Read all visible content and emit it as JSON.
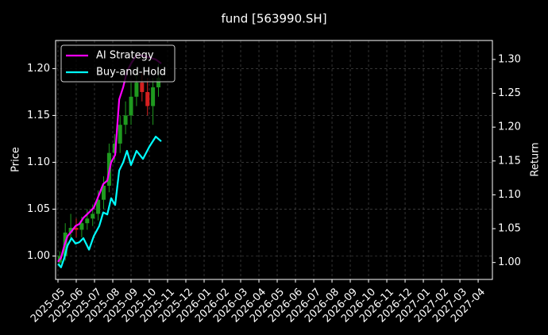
{
  "chart_data": {
    "type": "candlestick",
    "title": "fund [563990.SH]",
    "ylabel": "Price",
    "y2label": "Return",
    "legend": "upper left",
    "grid": true,
    "xlim": [
      -0.13,
      23.78
    ],
    "xticks": [
      {
        "value": 0,
        "label": "2025-05"
      },
      {
        "value": 1,
        "label": "2025-06"
      },
      {
        "value": 2,
        "label": "2025-07"
      },
      {
        "value": 3,
        "label": "2025-08"
      },
      {
        "value": 4,
        "label": "2025-09"
      },
      {
        "value": 5,
        "label": "2025-10"
      },
      {
        "value": 6,
        "label": "2025-11"
      },
      {
        "value": 7,
        "label": "2025-12"
      },
      {
        "value": 8,
        "label": "2026-01"
      },
      {
        "value": 9,
        "label": "2026-02"
      },
      {
        "value": 10,
        "label": "2026-03"
      },
      {
        "value": 11,
        "label": "2026-04"
      },
      {
        "value": 12,
        "label": "2026-05"
      },
      {
        "value": 13,
        "label": "2026-06"
      },
      {
        "value": 14,
        "label": "2026-07"
      },
      {
        "value": 15,
        "label": "2026-08"
      },
      {
        "value": 16,
        "label": "2026-09"
      },
      {
        "value": 17,
        "label": "2026-10"
      },
      {
        "value": 18,
        "label": "2026-11"
      },
      {
        "value": 19,
        "label": "2026-12"
      },
      {
        "value": 20,
        "label": "2027-01"
      },
      {
        "value": 21,
        "label": "2027-02"
      },
      {
        "value": 22,
        "label": "2027-03"
      },
      {
        "value": 23,
        "label": "2027-04"
      }
    ],
    "ylim": [
      0.975,
      1.23
    ],
    "yticks": [
      {
        "value": 1.0,
        "label": "1.00"
      },
      {
        "value": 1.05,
        "label": "1.05"
      },
      {
        "value": 1.1,
        "label": "1.10"
      },
      {
        "value": 1.15,
        "label": "1.15"
      },
      {
        "value": 1.2,
        "label": "1.20"
      }
    ],
    "y2lim": [
      0.975,
      1.328
    ],
    "y2ticks": [
      {
        "value": 1.0,
        "label": "1.00"
      },
      {
        "value": 1.05,
        "label": "1.05"
      },
      {
        "value": 1.1,
        "label": "1.10"
      },
      {
        "value": 1.15,
        "label": "1.15"
      },
      {
        "value": 1.2,
        "label": "1.20"
      },
      {
        "value": 1.25,
        "label": "1.25"
      },
      {
        "value": 1.3,
        "label": "1.30"
      }
    ],
    "up_color": "#1f9a1f",
    "down_color": "#d42020",
    "candles": {
      "x": [
        0.1,
        0.4,
        0.7,
        1.0,
        1.3,
        1.6,
        1.9,
        2.2,
        2.5,
        2.8,
        3.1,
        3.4,
        3.7,
        4.0,
        4.3,
        4.6,
        4.9,
        5.2,
        5.5
      ],
      "open": [
        0.993,
        1.0,
        1.025,
        1.03,
        1.028,
        1.035,
        1.04,
        1.045,
        1.06,
        1.075,
        1.11,
        1.12,
        1.14,
        1.15,
        1.17,
        1.185,
        1.175,
        1.16,
        1.18
      ],
      "close": [
        1.0,
        1.025,
        1.03,
        1.028,
        1.035,
        1.04,
        1.045,
        1.06,
        1.075,
        1.11,
        1.12,
        1.14,
        1.15,
        1.17,
        1.185,
        1.175,
        1.16,
        1.18,
        1.19
      ],
      "high": [
        1.005,
        1.035,
        1.045,
        1.04,
        1.042,
        1.05,
        1.055,
        1.07,
        1.085,
        1.12,
        1.13,
        1.15,
        1.165,
        1.185,
        1.2,
        1.195,
        1.19,
        1.19,
        1.205
      ],
      "low": [
        0.988,
        0.995,
        1.015,
        1.02,
        1.02,
        1.028,
        1.032,
        1.038,
        1.05,
        1.068,
        1.1,
        1.11,
        1.13,
        1.14,
        1.16,
        1.165,
        1.15,
        1.14,
        1.17
      ]
    },
    "x": [
      0,
      0.17,
      0.35,
      0.52,
      0.74,
      0.96,
      1.17,
      1.39,
      1.7,
      1.96,
      2.26,
      2.48,
      2.7,
      2.91,
      3.13,
      3.35,
      3.57,
      3.78,
      4.0,
      4.3,
      4.65,
      5.0,
      5.35,
      5.65
    ],
    "series": [
      {
        "name": "AI Strategy",
        "color": "#ff00ff",
        "axis": "y2",
        "values": [
          1.001,
          1.007,
          1.025,
          1.039,
          1.046,
          1.054,
          1.057,
          1.066,
          1.074,
          1.081,
          1.101,
          1.116,
          1.121,
          1.148,
          1.159,
          1.241,
          1.259,
          1.282,
          1.294,
          1.306,
          1.306,
          1.303,
          1.3,
          1.294
        ]
      },
      {
        "name": "Buy-and-Hold",
        "color": "#00ffff",
        "axis": "y2",
        "values": [
          0.998,
          0.993,
          1.007,
          1.025,
          1.036,
          1.028,
          1.03,
          1.036,
          1.019,
          1.039,
          1.054,
          1.074,
          1.071,
          1.095,
          1.085,
          1.136,
          1.148,
          1.165,
          1.144,
          1.165,
          1.153,
          1.171,
          1.186,
          1.179
        ]
      }
    ]
  }
}
